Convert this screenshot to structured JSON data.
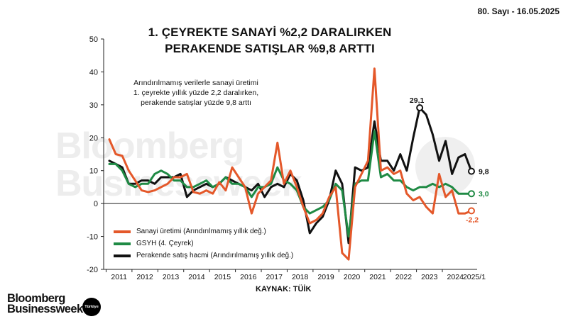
{
  "header": {
    "issue": "80. Sayı - 16.05.2025",
    "title_line1": "1. ÇEYREKTE SANAYİ %2,2 DARALIRKEN",
    "title_line2": "PERAKENDE SATIŞLAR %9,8 ARTTI"
  },
  "note": {
    "line1": "Arındırılmamış verilerle sanayi üretimi",
    "line2": "1. çeyrekte yıllık yüzde 2,2 daralırken,",
    "line3": "perakende satışlar yüzde 9,8 arttı"
  },
  "source": "KAYNAK: TÜİK",
  "watermark": {
    "line1": "Bloomberg",
    "line2": "Businessweek",
    "badge": "Türkiye"
  },
  "logo": {
    "line1": "Bloomberg",
    "line2": "Businessweek",
    "badge": "Türkiye"
  },
  "colors": {
    "sanayi": "#e4582a",
    "gsyh": "#1f8a44",
    "perakende": "#111111",
    "axis": "#222222"
  },
  "chart_data": {
    "type": "line",
    "x": [
      "2011Q1",
      "2011Q2",
      "2011Q3",
      "2011Q4",
      "2012Q1",
      "2012Q2",
      "2012Q3",
      "2012Q4",
      "2013Q1",
      "2013Q2",
      "2013Q3",
      "2013Q4",
      "2014Q1",
      "2014Q2",
      "2014Q3",
      "2014Q4",
      "2015Q1",
      "2015Q2",
      "2015Q3",
      "2015Q4",
      "2016Q1",
      "2016Q2",
      "2016Q3",
      "2016Q4",
      "2017Q1",
      "2017Q2",
      "2017Q3",
      "2017Q4",
      "2018Q1",
      "2018Q2",
      "2018Q3",
      "2018Q4",
      "2019Q1",
      "2019Q2",
      "2019Q3",
      "2019Q4",
      "2020Q1",
      "2020Q2",
      "2020Q3",
      "2020Q4",
      "2021Q1",
      "2021Q2",
      "2021Q3",
      "2021Q4",
      "2022Q1",
      "2022Q2",
      "2022Q3",
      "2022Q4",
      "2023Q1",
      "2023Q2",
      "2023Q3",
      "2023Q4",
      "2024Q1",
      "2024Q2",
      "2024Q3",
      "2024Q4",
      "2025Q1"
    ],
    "xticks": [
      "2011",
      "2012",
      "2013",
      "2014",
      "2015",
      "2016",
      "2017",
      "2018",
      "2019",
      "2020",
      "2021",
      "2022",
      "2023",
      "2024",
      "2025/1"
    ],
    "ylim": [
      -20,
      50
    ],
    "yticks": [
      -20,
      -10,
      0,
      10,
      20,
      30,
      40,
      50
    ],
    "series": [
      {
        "name": "Sanayi üretimi (Arındırılmamış yıllık değ.)",
        "color": "#e4582a",
        "values": [
          19.5,
          15,
          14.5,
          10,
          7,
          4,
          3.5,
          4,
          5,
          6,
          8,
          8,
          9,
          3.5,
          3,
          4,
          3,
          6.5,
          4,
          11,
          8,
          5,
          -3,
          3,
          5,
          7,
          18.5,
          6,
          10,
          5,
          -1,
          -6,
          -5,
          -3,
          2,
          5,
          -15,
          -17,
          5,
          9,
          13,
          41,
          10,
          11,
          9,
          10,
          3,
          1,
          2,
          -1,
          -3,
          9,
          2,
          4,
          -3,
          -3,
          -2.2
        ]
      },
      {
        "name": "GSYH (4. Çeyrek)",
        "color": "#1f8a44",
        "values": [
          12,
          12,
          10,
          6,
          5,
          6,
          6,
          9,
          10,
          9,
          7,
          7,
          5,
          5,
          6,
          7,
          5,
          6,
          8,
          6,
          6,
          5,
          2,
          5,
          5,
          6,
          11,
          7,
          6,
          4,
          -1,
          -3,
          -2,
          -1,
          1,
          6,
          4,
          -10,
          6,
          7,
          7,
          22,
          8,
          9,
          7,
          7,
          5,
          4,
          5,
          5,
          6,
          5,
          6,
          5,
          3,
          3,
          3.0
        ]
      },
      {
        "name": "Perakende satış hacmi (Arındırılmamış yıllık değ.)",
        "color": "#111111",
        "values": [
          13,
          12,
          11,
          6,
          6,
          7,
          7,
          6,
          8,
          8,
          8,
          9,
          2,
          4,
          5,
          6,
          5,
          6,
          8,
          7,
          6,
          5,
          4,
          6,
          2,
          5,
          6,
          5,
          9,
          7,
          1,
          -9,
          -6,
          -4,
          1,
          10,
          6,
          -12,
          11,
          10,
          11,
          25,
          13,
          13,
          10,
          15,
          10,
          20,
          29.1,
          27,
          21,
          13,
          19,
          9,
          14,
          15,
          9.8
        ]
      }
    ],
    "annotations": [
      {
        "series": 2,
        "index": 48,
        "label": "29,1"
      },
      {
        "series": 2,
        "index": 56,
        "label": "9,8"
      },
      {
        "series": 1,
        "index": 56,
        "label": "3,0"
      },
      {
        "series": 0,
        "index": 56,
        "label": "-2,2"
      }
    ]
  }
}
